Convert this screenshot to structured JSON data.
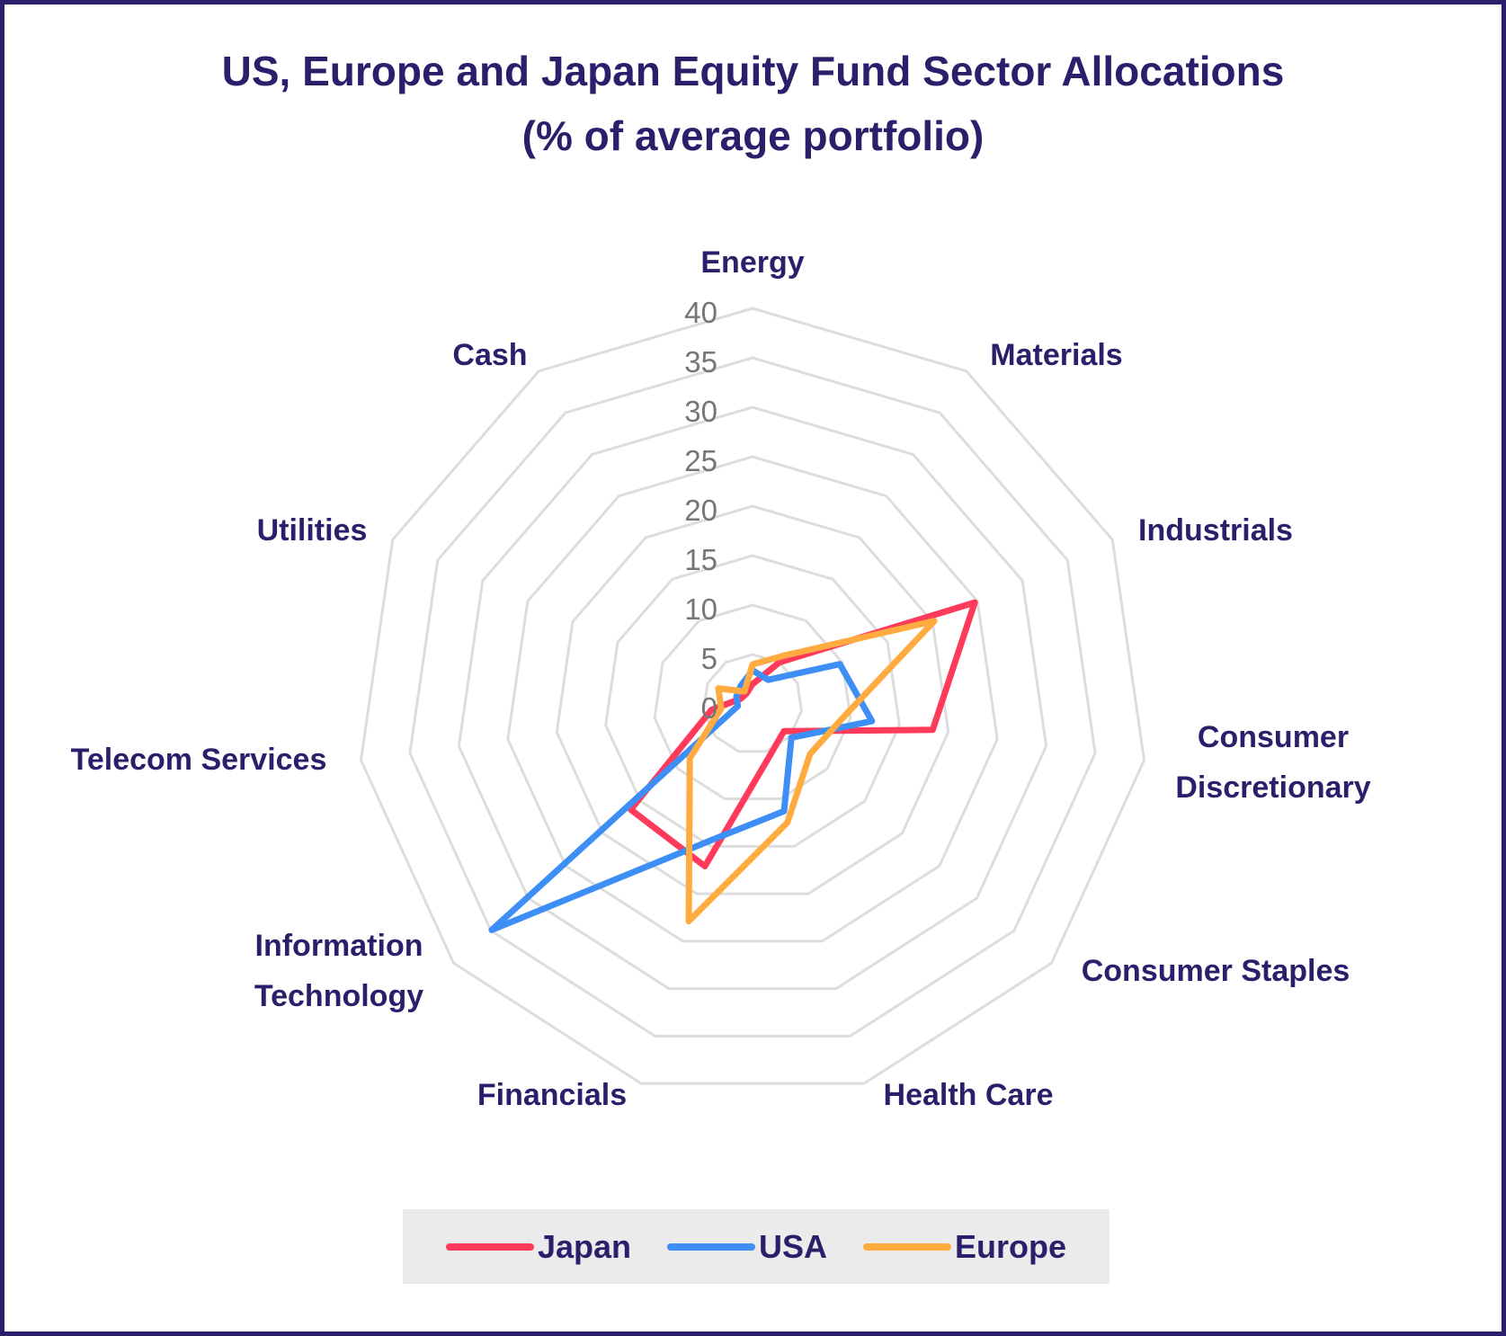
{
  "chart_data": {
    "type": "radar",
    "title": "US, Europe and Japan Equity Fund Sector Allocations",
    "subtitle": "(% of average portfolio)",
    "categories": [
      "Energy",
      "Materials",
      "Industrials",
      "Consumer Discretionary",
      "Consumer Staples",
      "Health Care",
      "Financials",
      "Information Technology",
      "Telecom Services",
      "Utilities",
      "Cash"
    ],
    "series": [
      {
        "name": "Japan",
        "color": "#FF3A5A",
        "values": [
          2.0,
          5.0,
          24.7,
          18.4,
          4.2,
          5.7,
          17.1,
          16.3,
          4.2,
          1.3,
          1.2
        ]
      },
      {
        "name": "USA",
        "color": "#3D8EF5",
        "values": [
          3.4,
          2.9,
          9.7,
          12.2,
          5.2,
          11.3,
          14.3,
          34.9,
          1.5,
          1.8,
          2.2
        ]
      },
      {
        "name": "Europe",
        "color": "#FFAB40",
        "values": [
          4.0,
          5.8,
          20.2,
          9.3,
          7.7,
          12.5,
          22.9,
          8.4,
          3.2,
          3.8,
          1.5
        ]
      }
    ],
    "r_ticks": [
      "0",
      "5",
      "10",
      "15",
      "20",
      "25",
      "30",
      "35",
      "40"
    ],
    "rlim": [
      0,
      40
    ],
    "grid": true,
    "legend_position": "bottom"
  },
  "title": {
    "line1": "US, Europe and Japan Equity Fund Sector Allocations",
    "line2": "(% of average portfolio)"
  },
  "axis_labels": [
    [
      "Energy"
    ],
    [
      "Materials"
    ],
    [
      "Industrials"
    ],
    [
      "Consumer",
      "Discretionary"
    ],
    [
      "Consumer Staples"
    ],
    [
      "Health Care"
    ],
    [
      "Financials"
    ],
    [
      "Information",
      "Technology"
    ],
    [
      "Telecom Services"
    ],
    [
      "Utilities"
    ],
    [
      "Cash"
    ]
  ],
  "legend": {
    "items": [
      {
        "label": "Japan",
        "color": "#FF3A5A"
      },
      {
        "label": "USA",
        "color": "#3D8EF5"
      },
      {
        "label": "Europe",
        "color": "#FFAB40"
      }
    ]
  },
  "colors": {
    "border": "#2B1F6B",
    "text": "#2B1F6B",
    "grid": "#DDDDDD",
    "tick": "#767676",
    "legend_bg": "#EBEBEB"
  }
}
